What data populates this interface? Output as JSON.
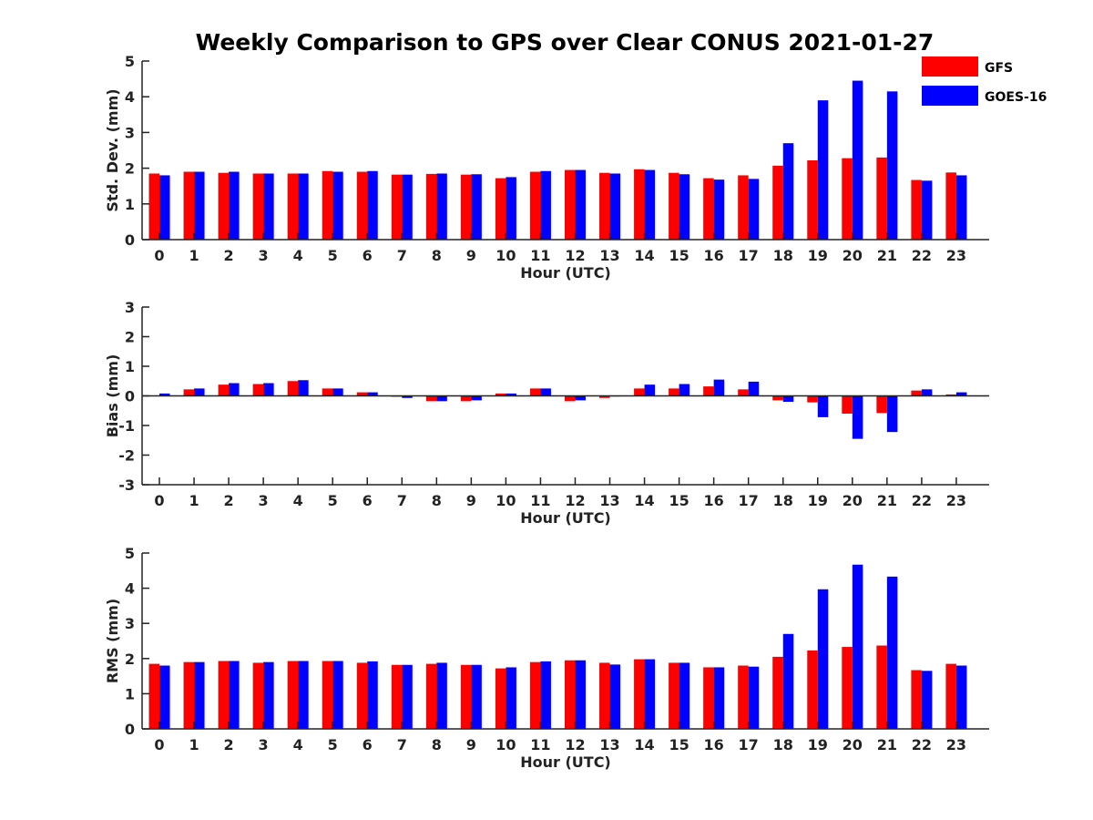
{
  "title": "Weekly Comparison to GPS over Clear CONUS 2021-01-27",
  "legend": [
    {
      "name": "GFS",
      "color": "#ff0000"
    },
    {
      "name": "GOES-16",
      "color": "#0000ff"
    }
  ],
  "chart_data": [
    {
      "type": "bar",
      "xlabel": "Hour (UTC)",
      "ylabel": "Std. Dev. (mm)",
      "ylim": [
        0,
        5
      ],
      "yticks": [
        0,
        1,
        2,
        3,
        4,
        5
      ],
      "categories": [
        "0",
        "1",
        "2",
        "3",
        "4",
        "5",
        "6",
        "7",
        "8",
        "9",
        "10",
        "11",
        "12",
        "13",
        "14",
        "15",
        "16",
        "17",
        "18",
        "19",
        "20",
        "21",
        "22",
        "23"
      ],
      "legend_position": "top-right",
      "grid": false,
      "series": [
        {
          "name": "GFS",
          "color": "#ff0000",
          "values": [
            1.85,
            1.9,
            1.87,
            1.85,
            1.85,
            1.92,
            1.9,
            1.82,
            1.84,
            1.82,
            1.72,
            1.9,
            1.95,
            1.87,
            1.97,
            1.87,
            1.72,
            1.8,
            2.07,
            2.22,
            2.28,
            2.3,
            1.67,
            1.88
          ]
        },
        {
          "name": "GOES-16",
          "color": "#0000ff",
          "values": [
            1.8,
            1.9,
            1.9,
            1.85,
            1.85,
            1.9,
            1.92,
            1.82,
            1.85,
            1.83,
            1.75,
            1.92,
            1.95,
            1.85,
            1.95,
            1.83,
            1.68,
            1.7,
            2.7,
            3.9,
            4.45,
            4.15,
            1.65,
            1.8
          ]
        }
      ]
    },
    {
      "type": "bar",
      "xlabel": "Hour (UTC)",
      "ylabel": "Bias (mm)",
      "ylim": [
        -3,
        3
      ],
      "yticks": [
        -3,
        -2,
        -1,
        0,
        1,
        2,
        3
      ],
      "categories": [
        "0",
        "1",
        "2",
        "3",
        "4",
        "5",
        "6",
        "7",
        "8",
        "9",
        "10",
        "11",
        "12",
        "13",
        "14",
        "15",
        "16",
        "17",
        "18",
        "19",
        "20",
        "21",
        "22",
        "23"
      ],
      "grid": false,
      "series": [
        {
          "name": "GFS",
          "color": "#ff0000",
          "values": [
            0.0,
            0.22,
            0.38,
            0.4,
            0.5,
            0.25,
            0.12,
            -0.03,
            -0.18,
            -0.18,
            0.08,
            0.25,
            -0.18,
            -0.07,
            0.25,
            0.25,
            0.32,
            0.22,
            -0.15,
            -0.22,
            -0.6,
            -0.58,
            0.18,
            0.05
          ]
        },
        {
          "name": "GOES-16",
          "color": "#0000ff",
          "values": [
            0.08,
            0.25,
            0.43,
            0.43,
            0.53,
            0.25,
            0.12,
            -0.07,
            -0.18,
            -0.15,
            0.08,
            0.25,
            -0.15,
            -0.02,
            0.38,
            0.4,
            0.55,
            0.48,
            -0.2,
            -0.72,
            -1.45,
            -1.22,
            0.22,
            0.12
          ]
        }
      ]
    },
    {
      "type": "bar",
      "xlabel": "Hour (UTC)",
      "ylabel": "RMS (mm)",
      "ylim": [
        0,
        5
      ],
      "yticks": [
        0,
        1,
        2,
        3,
        4,
        5
      ],
      "categories": [
        "0",
        "1",
        "2",
        "3",
        "4",
        "5",
        "6",
        "7",
        "8",
        "9",
        "10",
        "11",
        "12",
        "13",
        "14",
        "15",
        "16",
        "17",
        "18",
        "19",
        "20",
        "21",
        "22",
        "23"
      ],
      "grid": false,
      "series": [
        {
          "name": "GFS",
          "color": "#ff0000",
          "values": [
            1.85,
            1.9,
            1.93,
            1.88,
            1.93,
            1.93,
            1.88,
            1.82,
            1.85,
            1.82,
            1.72,
            1.9,
            1.95,
            1.88,
            1.98,
            1.88,
            1.75,
            1.8,
            2.05,
            2.23,
            2.33,
            2.37,
            1.67,
            1.85
          ]
        },
        {
          "name": "GOES-16",
          "color": "#0000ff",
          "values": [
            1.8,
            1.9,
            1.93,
            1.9,
            1.93,
            1.93,
            1.92,
            1.82,
            1.88,
            1.82,
            1.75,
            1.92,
            1.95,
            1.83,
            1.98,
            1.88,
            1.75,
            1.77,
            2.7,
            3.97,
            4.67,
            4.33,
            1.65,
            1.8
          ]
        }
      ]
    }
  ]
}
